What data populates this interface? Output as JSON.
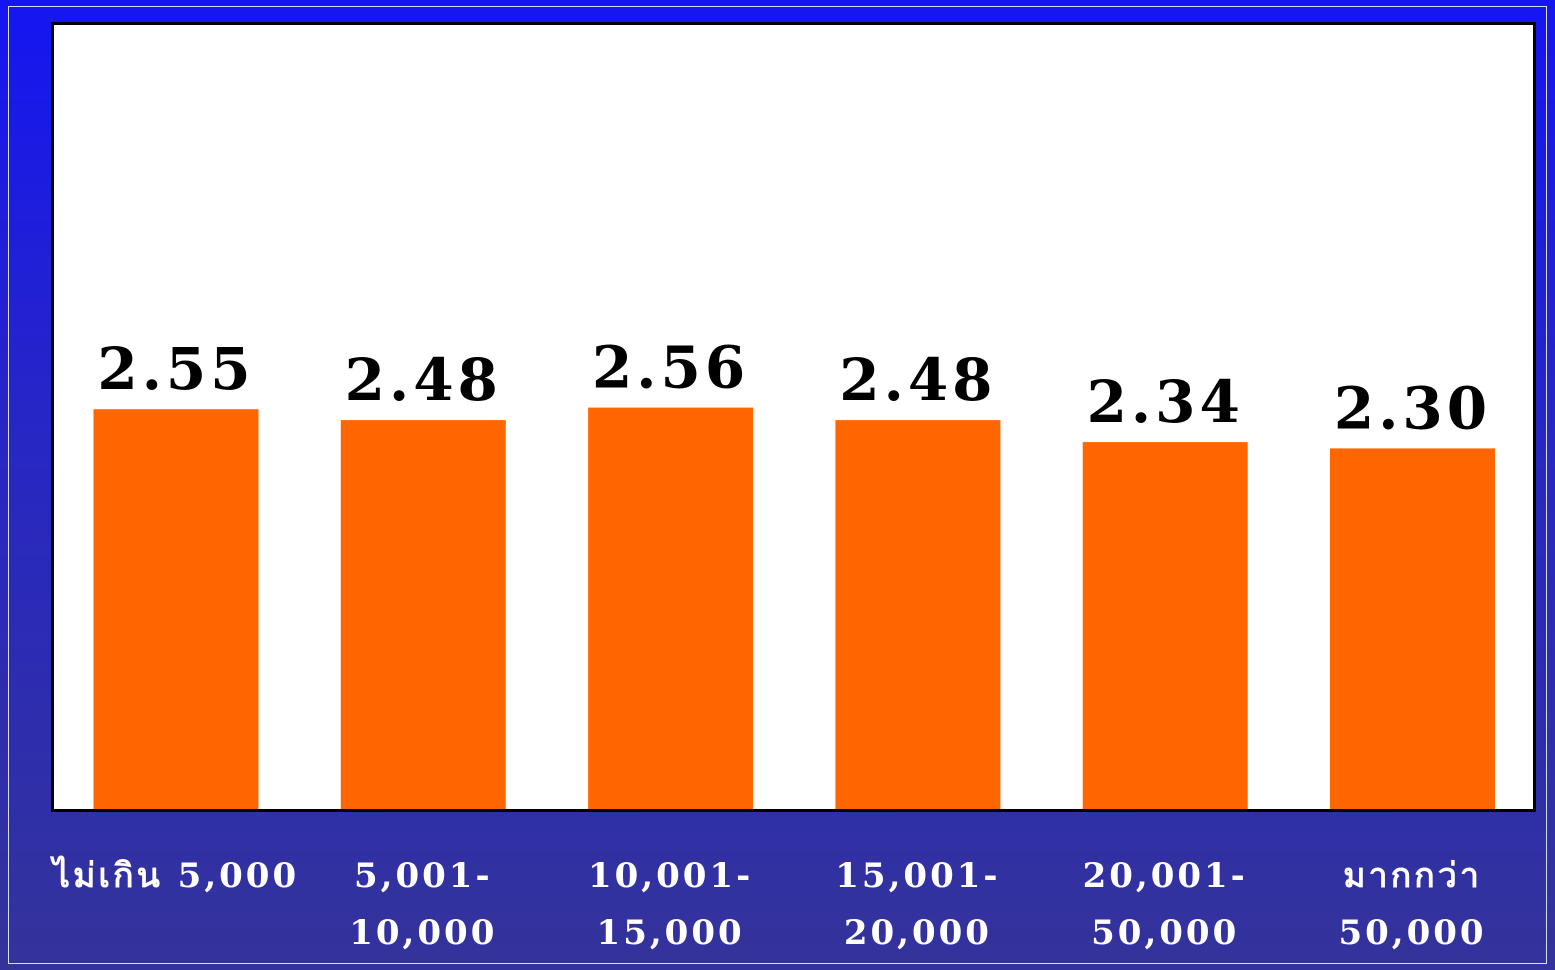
{
  "chart_data": {
    "type": "bar",
    "categories": [
      [
        "ไม่เกิน 5,000"
      ],
      [
        "5,001-",
        "10,000"
      ],
      [
        "10,001-",
        "15,000"
      ],
      [
        "15,001-",
        "20,000"
      ],
      [
        "20,001-",
        "50,000"
      ],
      [
        "มากกว่า",
        "50,000"
      ]
    ],
    "values": [
      2.55,
      2.48,
      2.56,
      2.48,
      2.34,
      2.3
    ],
    "value_labels": [
      "2.55",
      "2.48",
      "2.56",
      "2.48",
      "2.34",
      "2.30"
    ],
    "title": "",
    "xlabel": "",
    "ylabel": "",
    "ylim": [
      0,
      5
    ],
    "grid": false,
    "legend": "none",
    "colors": {
      "bar": "#ff6600",
      "plot_background": "#ffffff",
      "plot_border": "#000000",
      "background_top": "#1515f2",
      "background_bottom": "#34339a",
      "tick_label": "#ffffff"
    }
  }
}
